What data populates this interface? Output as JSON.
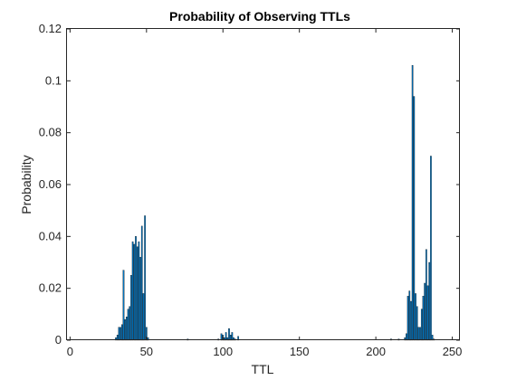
{
  "chart_data": {
    "type": "bar",
    "title": "Probability of Observing TTLs",
    "xlabel": "TTL",
    "ylabel": "Probability",
    "xlim": [
      -2,
      255
    ],
    "ylim": [
      0,
      0.12
    ],
    "xticks": [
      0,
      50,
      100,
      150,
      200,
      250
    ],
    "yticks": [
      0,
      0.02,
      0.04,
      0.06,
      0.08,
      0.1,
      0.12
    ],
    "xtick_labels": [
      "0",
      "50",
      "100",
      "150",
      "200",
      "250"
    ],
    "ytick_labels": [
      "0",
      "0.02",
      "0.04",
      "0.06",
      "0.08",
      "0.1",
      "0.12"
    ],
    "grid": false,
    "bar_color": "#0072bd",
    "bar_edge_color": "#000000",
    "x": [
      30,
      31,
      32,
      33,
      34,
      35,
      36,
      37,
      38,
      39,
      40,
      41,
      42,
      43,
      44,
      45,
      46,
      47,
      48,
      49,
      50,
      51,
      77,
      97,
      99,
      100,
      101,
      102,
      103,
      104,
      105,
      106,
      107,
      108,
      110,
      210,
      215,
      219,
      220,
      221,
      222,
      223,
      224,
      225,
      226,
      227,
      228,
      229,
      230,
      231,
      232,
      233,
      234,
      235,
      236,
      237,
      238
    ],
    "values": [
      0.001,
      0.002,
      0.005,
      0.005,
      0.006,
      0.027,
      0.008,
      0.009,
      0.012,
      0.013,
      0.025,
      0.038,
      0.037,
      0.04,
      0.036,
      0.038,
      0.032,
      0.044,
      0.018,
      0.048,
      0.005,
      0.001,
      0.0005,
      0.0005,
      0.0025,
      0.002,
      0.001,
      0.003,
      0.001,
      0.0045,
      0.002,
      0.003,
      0.001,
      0.0005,
      0.0015,
      0.0005,
      0.0005,
      0.001,
      0.0025,
      0.017,
      0.019,
      0.015,
      0.106,
      0.094,
      0.018,
      0.013,
      0.005,
      0.005,
      0.012,
      0.017,
      0.022,
      0.035,
      0.021,
      0.03,
      0.071,
      0.002,
      0.0005
    ]
  }
}
